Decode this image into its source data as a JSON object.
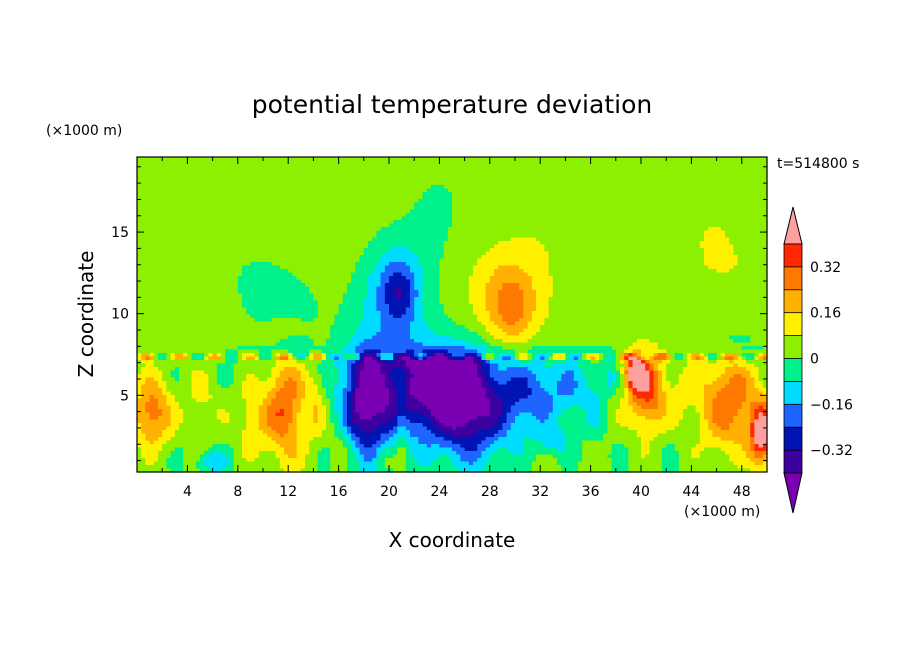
{
  "chart_data": {
    "type": "heatmap",
    "title": "potential temperature deviation",
    "xlabel": "X coordinate",
    "ylabel": "Z coordinate",
    "x_unit": "(×1000 m)",
    "y_unit": "(×1000 m)",
    "time_label": "t=514800 s",
    "xlim": [
      0,
      50
    ],
    "ylim": [
      0.3,
      19.6
    ],
    "x_ticks": [
      "4",
      "8",
      "12",
      "16",
      "20",
      "24",
      "28",
      "32",
      "36",
      "40",
      "44",
      "48"
    ],
    "y_ticks": [
      "5",
      "10",
      "15"
    ],
    "colorbar": {
      "colors": [
        "#7b00b4",
        "#3c00a0",
        "#0014b4",
        "#1e64ff",
        "#00dcff",
        "#00f08c",
        "#8cf000",
        "#fff000",
        "#ffb000",
        "#ff7800",
        "#ff2800",
        "#ffa0a0"
      ],
      "tick_labels": [
        "0.32",
        "0.16",
        "0",
        "−0.16",
        "−0.32"
      ]
    },
    "levels": [
      -0.4,
      -0.32,
      -0.24,
      -0.16,
      -0.08,
      0,
      0.08,
      0.16,
      0.24,
      0.32,
      0.4
    ]
  }
}
